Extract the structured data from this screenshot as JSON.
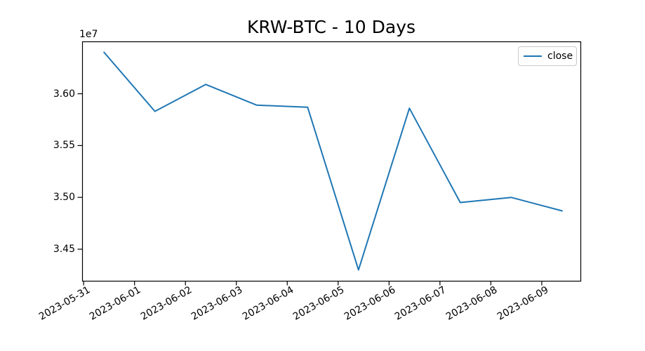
{
  "figure": {
    "background": "#ffffff"
  },
  "legend": {
    "entries": [
      {
        "label": "close",
        "color": "#1f77b4"
      }
    ]
  },
  "chart_data": {
    "type": "line",
    "title": "KRW-BTC - 10 Days",
    "xlabel": "",
    "ylabel": "",
    "categories": [
      "2023-05-31",
      "2023-06-01",
      "2023-06-02",
      "2023-06-03",
      "2023-06-04",
      "2023-06-05",
      "2023-06-06",
      "2023-06-07",
      "2023-06-08",
      "2023-06-09"
    ],
    "series": [
      {
        "name": "close",
        "color": "#1f77b4",
        "values": [
          36400000,
          35830000,
          36090000,
          35890000,
          35870000,
          34300000,
          35860000,
          34950000,
          35000000,
          34870000
        ]
      }
    ],
    "yticks": {
      "values": [
        34500000,
        35000000,
        35500000,
        36000000
      ],
      "labels": [
        "3.45",
        "3.50",
        "3.55",
        "3.60"
      ],
      "offset_label": "1e7"
    },
    "ylim": [
      34195000,
      36505000
    ],
    "xlim": [
      -0.03,
      9.76
    ],
    "x_point_offset": 0.4,
    "x_tick_rotation": -30,
    "grid": false,
    "legend_position": "upper right",
    "axis_color": "#000000"
  }
}
